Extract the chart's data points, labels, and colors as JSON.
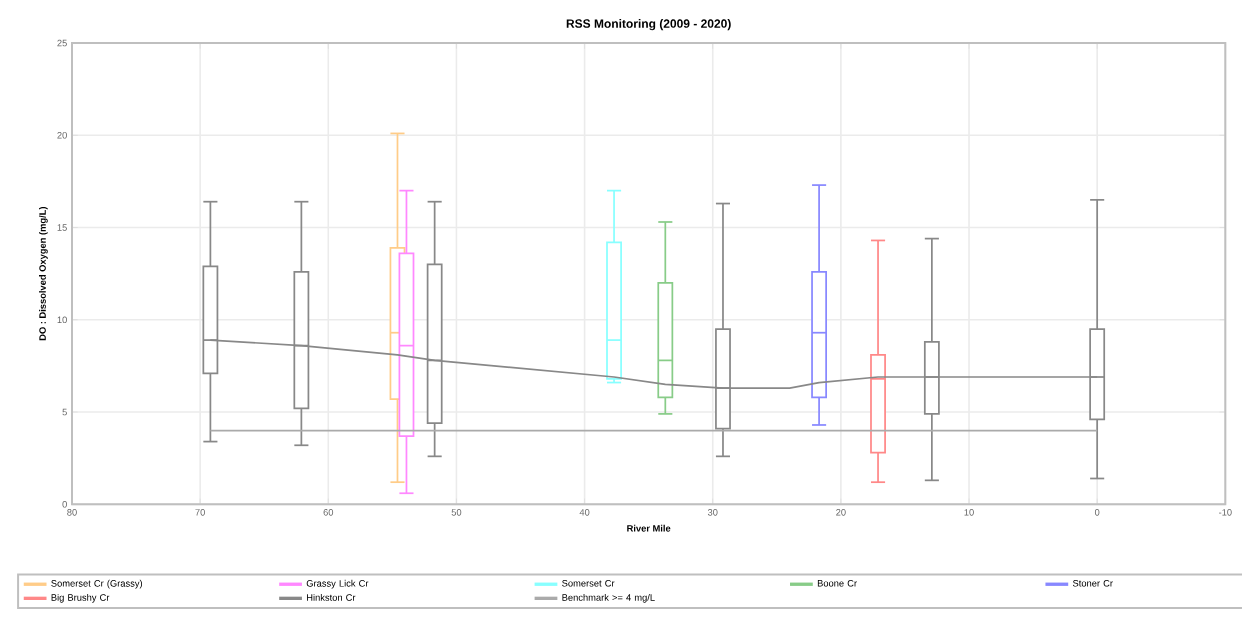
{
  "chart_data": {
    "type": "box",
    "title": "RSS Monitoring (2009 - 2020)",
    "xlabel": "River Mile",
    "ylabel": "DO : Dissolved Oxygen (mg/L)",
    "xlim": [
      80,
      -10
    ],
    "xticks": [
      80,
      70,
      60,
      50,
      40,
      30,
      20,
      10,
      0,
      -10
    ],
    "ylim": [
      0,
      25
    ],
    "yticks": [
      0,
      5,
      10,
      15,
      20,
      25
    ],
    "grid": true,
    "legend": "bottom",
    "series": [
      {
        "name": "Somerset Cr (Grassy)",
        "color": "#ffcc88",
        "x": [
          54.6
        ],
        "boxes": [
          {
            "low": 1.2,
            "q1": 5.7,
            "median": 9.3,
            "q3": 13.9,
            "high": 20.1
          }
        ]
      },
      {
        "name": "Grassy Lick Cr",
        "color": "#ff88ff",
        "x": [
          53.9
        ],
        "boxes": [
          {
            "low": 0.6,
            "q1": 3.7,
            "median": 8.6,
            "q3": 13.6,
            "high": 17.0
          }
        ]
      },
      {
        "name": "Somerset Cr",
        "color": "#88ffff",
        "x": [
          37.7
        ],
        "boxes": [
          {
            "low": 6.6,
            "q1": 6.8,
            "median": 8.9,
            "q3": 14.2,
            "high": 17.0
          }
        ]
      },
      {
        "name": "Boone Cr",
        "color": "#88cc88",
        "x": [
          33.7
        ],
        "boxes": [
          {
            "low": 4.9,
            "q1": 5.8,
            "median": 7.8,
            "q3": 12.0,
            "high": 15.3
          }
        ]
      },
      {
        "name": "Stoner Cr",
        "color": "#8888ff",
        "x": [
          21.7
        ],
        "boxes": [
          {
            "low": 4.3,
            "q1": 5.8,
            "median": 9.3,
            "q3": 12.6,
            "high": 17.3
          }
        ]
      },
      {
        "name": "Big Brushy Cr",
        "color": "#ff8888",
        "x": [
          17.1
        ],
        "boxes": [
          {
            "low": 1.2,
            "q1": 2.8,
            "median": 6.8,
            "q3": 8.1,
            "high": 14.3
          }
        ]
      },
      {
        "name": "Hinkston Cr",
        "color": "#888888",
        "x": [
          69.2,
          62.1,
          51.7,
          29.2,
          12.9,
          0
        ],
        "boxes": [
          {
            "low": 3.4,
            "q1": 7.1,
            "median": 8.9,
            "q3": 12.9,
            "high": 16.4
          },
          {
            "low": 3.2,
            "q1": 5.2,
            "median": 8.6,
            "q3": 12.6,
            "high": 16.4
          },
          {
            "low": 2.6,
            "q1": 4.4,
            "median": 7.8,
            "q3": 13.0,
            "high": 16.4
          },
          {
            "low": 2.6,
            "q1": 4.1,
            "median": 6.3,
            "q3": 9.5,
            "high": 16.3
          },
          {
            "low": 1.3,
            "q1": 4.9,
            "median": 6.9,
            "q3": 8.8,
            "high": 14.4
          },
          {
            "low": 1.4,
            "q1": 4.6,
            "median": 6.9,
            "q3": 9.5,
            "high": 16.5
          }
        ]
      },
      {
        "type": "line",
        "color": "#888888",
        "x": [
          69.2,
          62.1,
          54.6,
          51.7,
          37.7,
          33.7,
          29.2,
          24,
          21.7,
          17.1,
          12.9,
          0
        ],
        "values": [
          8.9,
          8.6,
          8.1,
          7.8,
          6.9,
          6.5,
          6.3,
          6.3,
          6.6,
          6.9,
          6.9,
          6.9
        ]
      },
      {
        "name": "Benchmark >= 4 mg/L",
        "type": "line",
        "color": "#aaaaaa",
        "x": [
          69.2,
          0
        ],
        "values": [
          4,
          4
        ]
      }
    ]
  }
}
